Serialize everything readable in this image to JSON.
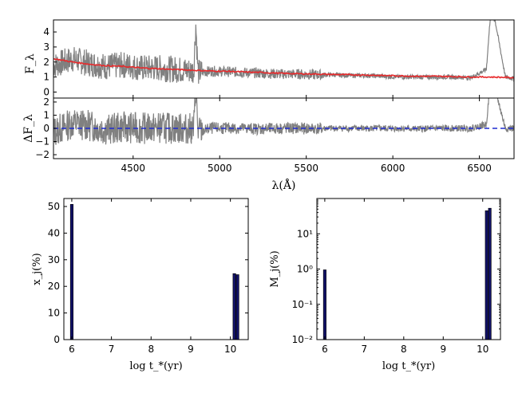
{
  "chart_data": [
    {
      "type": "line",
      "panel": "spectrum",
      "title": "",
      "xlabel": "λ(Å)",
      "ylabel": "F_λ",
      "xlim": [
        4040,
        6700
      ],
      "ylim": [
        -0.4,
        4.8
      ],
      "xticks": [
        "4500",
        "5000",
        "5500",
        "6000",
        "6500"
      ],
      "yticks": [
        "0",
        "1",
        "2",
        "3",
        "4"
      ],
      "series": [
        {
          "name": "observed",
          "color": "#808080",
          "x": [
            4050,
            4150,
            4250,
            4350,
            4450,
            4550,
            4650,
            4750,
            4850,
            4862,
            4875,
            4950,
            5050,
            5150,
            5250,
            5350,
            5450,
            5550,
            5650,
            5750,
            5850,
            5950,
            6050,
            6150,
            6250,
            6350,
            6450,
            6540,
            6563,
            6590,
            6650,
            6700
          ],
          "y": [
            1.8,
            2.2,
            1.9,
            1.7,
            1.8,
            1.6,
            1.6,
            1.5,
            1.4,
            4.5,
            1.3,
            1.4,
            1.35,
            1.3,
            1.25,
            1.2,
            1.2,
            1.15,
            1.15,
            1.1,
            1.1,
            1.05,
            1.0,
            1.0,
            1.0,
            1.0,
            0.95,
            1.5,
            5.0,
            4.8,
            1.0,
            0.9
          ]
        },
        {
          "name": "model",
          "color": "#e8292b",
          "x": [
            4050,
            4150,
            4250,
            4350,
            4450,
            4550,
            4650,
            4750,
            4850,
            4950,
            5050,
            5150,
            5250,
            5350,
            5450,
            5550,
            5650,
            5750,
            5850,
            5950,
            6050,
            6150,
            6250,
            6350,
            6450,
            6563,
            6650,
            6700
          ],
          "y": [
            2.2,
            2.0,
            1.85,
            1.75,
            1.7,
            1.6,
            1.55,
            1.5,
            1.45,
            1.4,
            1.38,
            1.33,
            1.3,
            1.25,
            1.22,
            1.2,
            1.17,
            1.15,
            1.13,
            1.1,
            1.08,
            1.05,
            1.05,
            1.03,
            1.0,
            1.0,
            0.98,
            0.95
          ]
        }
      ]
    },
    {
      "type": "line",
      "panel": "residual",
      "xlabel": "λ(Å)",
      "ylabel": "ΔF_λ",
      "xlim": [
        4040,
        6700
      ],
      "ylim": [
        -2.3,
        2.3
      ],
      "yticks": [
        "−2",
        "−1",
        "0",
        "1",
        "2"
      ],
      "series": [
        {
          "name": "residual",
          "color": "#808080",
          "x": [
            4050,
            4150,
            4250,
            4350,
            4450,
            4550,
            4650,
            4750,
            4850,
            4862,
            4875,
            4950,
            5050,
            5150,
            5250,
            5350,
            5450,
            5550,
            5650,
            5750,
            5850,
            5950,
            6050,
            6150,
            6250,
            6350,
            6450,
            6540,
            6563,
            6590,
            6650,
            6700
          ],
          "y": [
            -0.2,
            0.4,
            0.2,
            -0.1,
            0.1,
            0.0,
            0.05,
            0.0,
            -0.05,
            3.0,
            -0.3,
            0.0,
            0.02,
            0.0,
            -0.05,
            0.0,
            0.0,
            -0.02,
            0.0,
            0.0,
            0.0,
            0.0,
            0.0,
            -0.05,
            0.0,
            0.0,
            0.0,
            0.3,
            3.5,
            3.0,
            0.0,
            0.0
          ]
        },
        {
          "name": "zero",
          "color": "#1f2bd1",
          "style": "dashed",
          "x": [
            4040,
            6700
          ],
          "y": [
            0,
            0
          ]
        }
      ]
    },
    {
      "type": "bar",
      "panel": "light-fraction",
      "xlabel": "log t_*(yr)",
      "ylabel": "x_j(%)",
      "xlim": [
        5.8,
        10.45
      ],
      "ylim": [
        0,
        53
      ],
      "scale": "linear",
      "xticks": [
        "6",
        "7",
        "8",
        "9",
        "10"
      ],
      "yticks": [
        "0",
        "10",
        "20",
        "30",
        "40",
        "50"
      ],
      "bar_color": "#111166",
      "x": [
        6.0,
        10.1,
        10.18
      ],
      "values": [
        50.8,
        24.8,
        24.4
      ]
    },
    {
      "type": "bar",
      "panel": "mass-fraction",
      "xlabel": "log t_*(yr)",
      "ylabel": "M_j(%)",
      "xlim": [
        5.8,
        10.45
      ],
      "ylim": [
        0.01,
        100
      ],
      "scale": "log",
      "xticks": [
        "6",
        "7",
        "8",
        "9",
        "10"
      ],
      "yticks": [
        "10⁻²",
        "10⁻¹",
        "10⁰",
        "10¹"
      ],
      "bar_color": "#111166",
      "x": [
        6.0,
        10.1,
        10.18
      ],
      "values": [
        0.95,
        45,
        53
      ]
    }
  ]
}
